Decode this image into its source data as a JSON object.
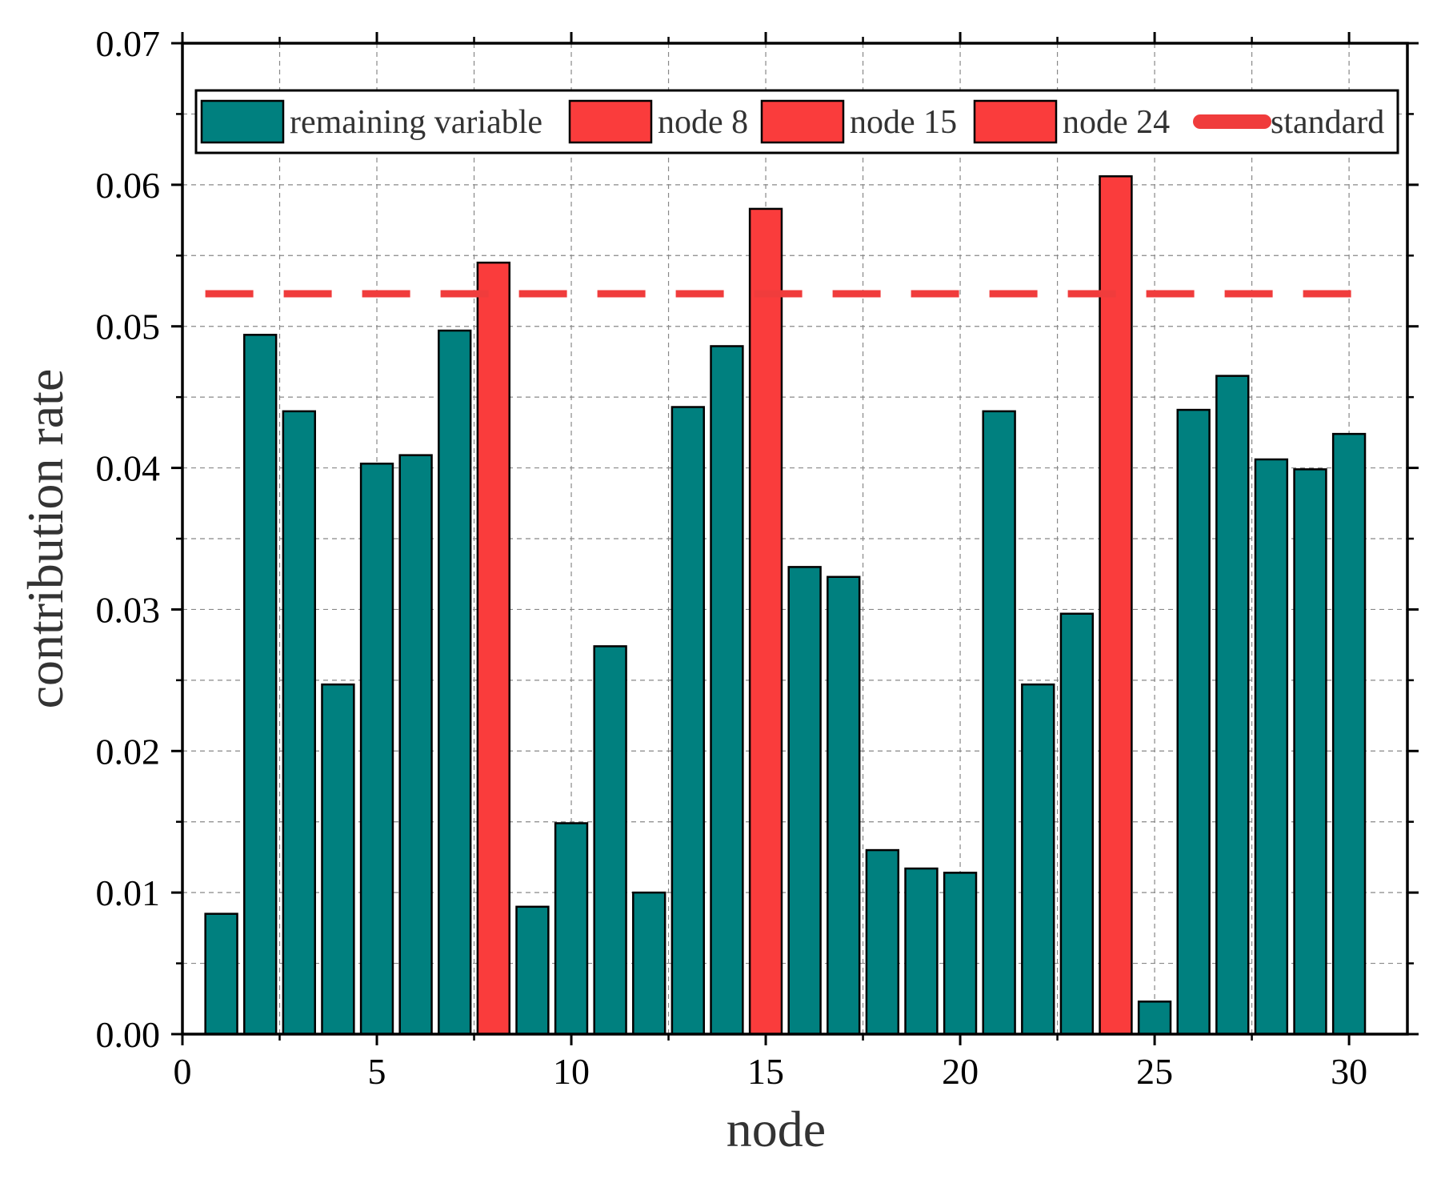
{
  "chart_data": {
    "type": "bar",
    "xlabel": "node",
    "ylabel": "contribution rate",
    "xlim": [
      0,
      31.5
    ],
    "ylim": [
      0,
      0.07
    ],
    "x_ticks": [
      0,
      5,
      10,
      15,
      20,
      25,
      30
    ],
    "x_tick_labels": [
      "0",
      "5",
      "10",
      "15",
      "20",
      "25",
      "30"
    ],
    "y_ticks": [
      0,
      0.01,
      0.02,
      0.03,
      0.04,
      0.05,
      0.06,
      0.07
    ],
    "y_tick_labels": [
      "0.00",
      "0.01",
      "0.02",
      "0.03",
      "0.04",
      "0.05",
      "0.06",
      "0.07"
    ],
    "grid": true,
    "legend_position": "top",
    "categories": [
      1,
      2,
      3,
      4,
      5,
      6,
      7,
      8,
      9,
      10,
      11,
      12,
      13,
      14,
      15,
      16,
      17,
      18,
      19,
      20,
      21,
      22,
      23,
      24,
      25,
      26,
      27,
      28,
      29,
      30
    ],
    "values": [
      0.0085,
      0.0494,
      0.044,
      0.0247,
      0.0403,
      0.0409,
      0.0497,
      0.0545,
      0.009,
      0.0149,
      0.0274,
      0.01,
      0.0443,
      0.0486,
      0.0583,
      0.033,
      0.0323,
      0.013,
      0.0117,
      0.0114,
      0.044,
      0.0247,
      0.0297,
      0.0606,
      0.0023,
      0.0441,
      0.0465,
      0.0406,
      0.0399,
      0.0424
    ],
    "highlighted_nodes": [
      8,
      15,
      24
    ],
    "standard": 0.0523,
    "colors": {
      "remaining": "#00807f",
      "highlight": "#fa3c3c",
      "standard_line": "#f03c3c",
      "grid": "#888888"
    },
    "legend": [
      {
        "label": "remaining variable",
        "kind": "bar",
        "color": "#00807f"
      },
      {
        "label": "node 8",
        "kind": "bar",
        "color": "#fa3c3c"
      },
      {
        "label": "node 15",
        "kind": "bar",
        "color": "#fa3c3c"
      },
      {
        "label": "node 24",
        "kind": "bar",
        "color": "#fa3c3c"
      },
      {
        "label": "standard",
        "kind": "dash",
        "color": "#f03c3c"
      }
    ]
  }
}
